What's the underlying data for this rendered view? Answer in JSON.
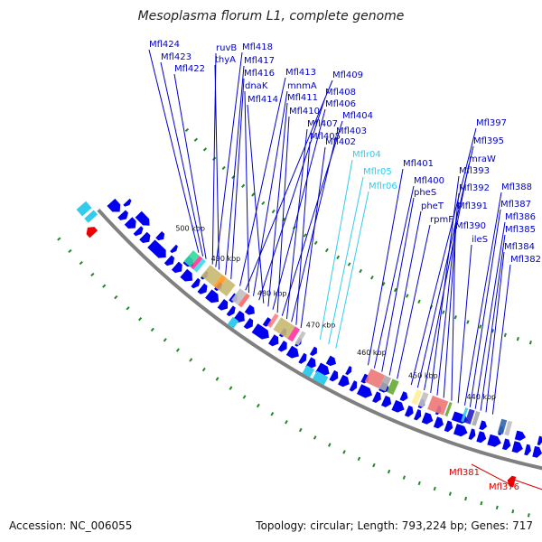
{
  "title": "Mesoplasma florum L1, complete genome",
  "footer": {
    "accession": "Accession: NC_006055",
    "summary": "Topology: circular; Length: 793,224 bp; Genes: 717"
  },
  "colors": {
    "backbone": "#808080",
    "forward_gene": "#0000ee",
    "reverse_gene": "#ee0000",
    "label_blue": "#0000cc",
    "label_cyan": "#33ccee",
    "label_red": "#dd0000",
    "tick": "#228822"
  },
  "kbp_ticks": [
    "500 kbp",
    "490 kbp",
    "480 kbp",
    "470 kbp",
    "460 kbp",
    "450 kbp",
    "440 kbp"
  ],
  "gene_labels": [
    {
      "text": "Mfl424",
      "color": "blue"
    },
    {
      "text": "Mfl423",
      "color": "blue"
    },
    {
      "text": "Mfl422",
      "color": "blue"
    },
    {
      "text": "ruvB",
      "color": "blue"
    },
    {
      "text": "Mfl418",
      "color": "blue"
    },
    {
      "text": "thyA",
      "color": "blue"
    },
    {
      "text": "Mfl417",
      "color": "blue"
    },
    {
      "text": "Mfl416",
      "color": "blue"
    },
    {
      "text": "Mfl413",
      "color": "blue"
    },
    {
      "text": "Mfl409",
      "color": "blue"
    },
    {
      "text": "dnaK",
      "color": "blue"
    },
    {
      "text": "mnmA",
      "color": "blue"
    },
    {
      "text": "Mfl408",
      "color": "blue"
    },
    {
      "text": "Mfl414",
      "color": "blue"
    },
    {
      "text": "Mfl411",
      "color": "blue"
    },
    {
      "text": "Mfl406",
      "color": "blue"
    },
    {
      "text": "Mfl410",
      "color": "blue"
    },
    {
      "text": "Mfl404",
      "color": "blue"
    },
    {
      "text": "Mfl407",
      "color": "blue"
    },
    {
      "text": "Mfl403",
      "color": "blue"
    },
    {
      "text": "Mfl405",
      "color": "blue"
    },
    {
      "text": "Mfl402",
      "color": "blue"
    },
    {
      "text": "Mflr04",
      "color": "cyan"
    },
    {
      "text": "Mflr05",
      "color": "cyan"
    },
    {
      "text": "Mflr06",
      "color": "cyan"
    },
    {
      "text": "Mfl401",
      "color": "blue"
    },
    {
      "text": "Mfl400",
      "color": "blue"
    },
    {
      "text": "pheS",
      "color": "blue"
    },
    {
      "text": "pheT",
      "color": "blue"
    },
    {
      "text": "rpmF",
      "color": "blue"
    },
    {
      "text": "Mfl397",
      "color": "blue"
    },
    {
      "text": "Mfl395",
      "color": "blue"
    },
    {
      "text": "mraW",
      "color": "blue"
    },
    {
      "text": "Mfl393",
      "color": "blue"
    },
    {
      "text": "Mfl392",
      "color": "blue"
    },
    {
      "text": "Mfl391",
      "color": "blue"
    },
    {
      "text": "Mfl390",
      "color": "blue"
    },
    {
      "text": "ileS",
      "color": "blue"
    },
    {
      "text": "Mfl388",
      "color": "blue"
    },
    {
      "text": "Mfl387",
      "color": "blue"
    },
    {
      "text": "Mfl386",
      "color": "blue"
    },
    {
      "text": "Mfl385",
      "color": "blue"
    },
    {
      "text": "Mfl384",
      "color": "blue"
    },
    {
      "text": "Mfl382",
      "color": "blue"
    },
    {
      "text": "Mfl381",
      "color": "red"
    },
    {
      "text": "Mfl376",
      "color": "red"
    }
  ]
}
